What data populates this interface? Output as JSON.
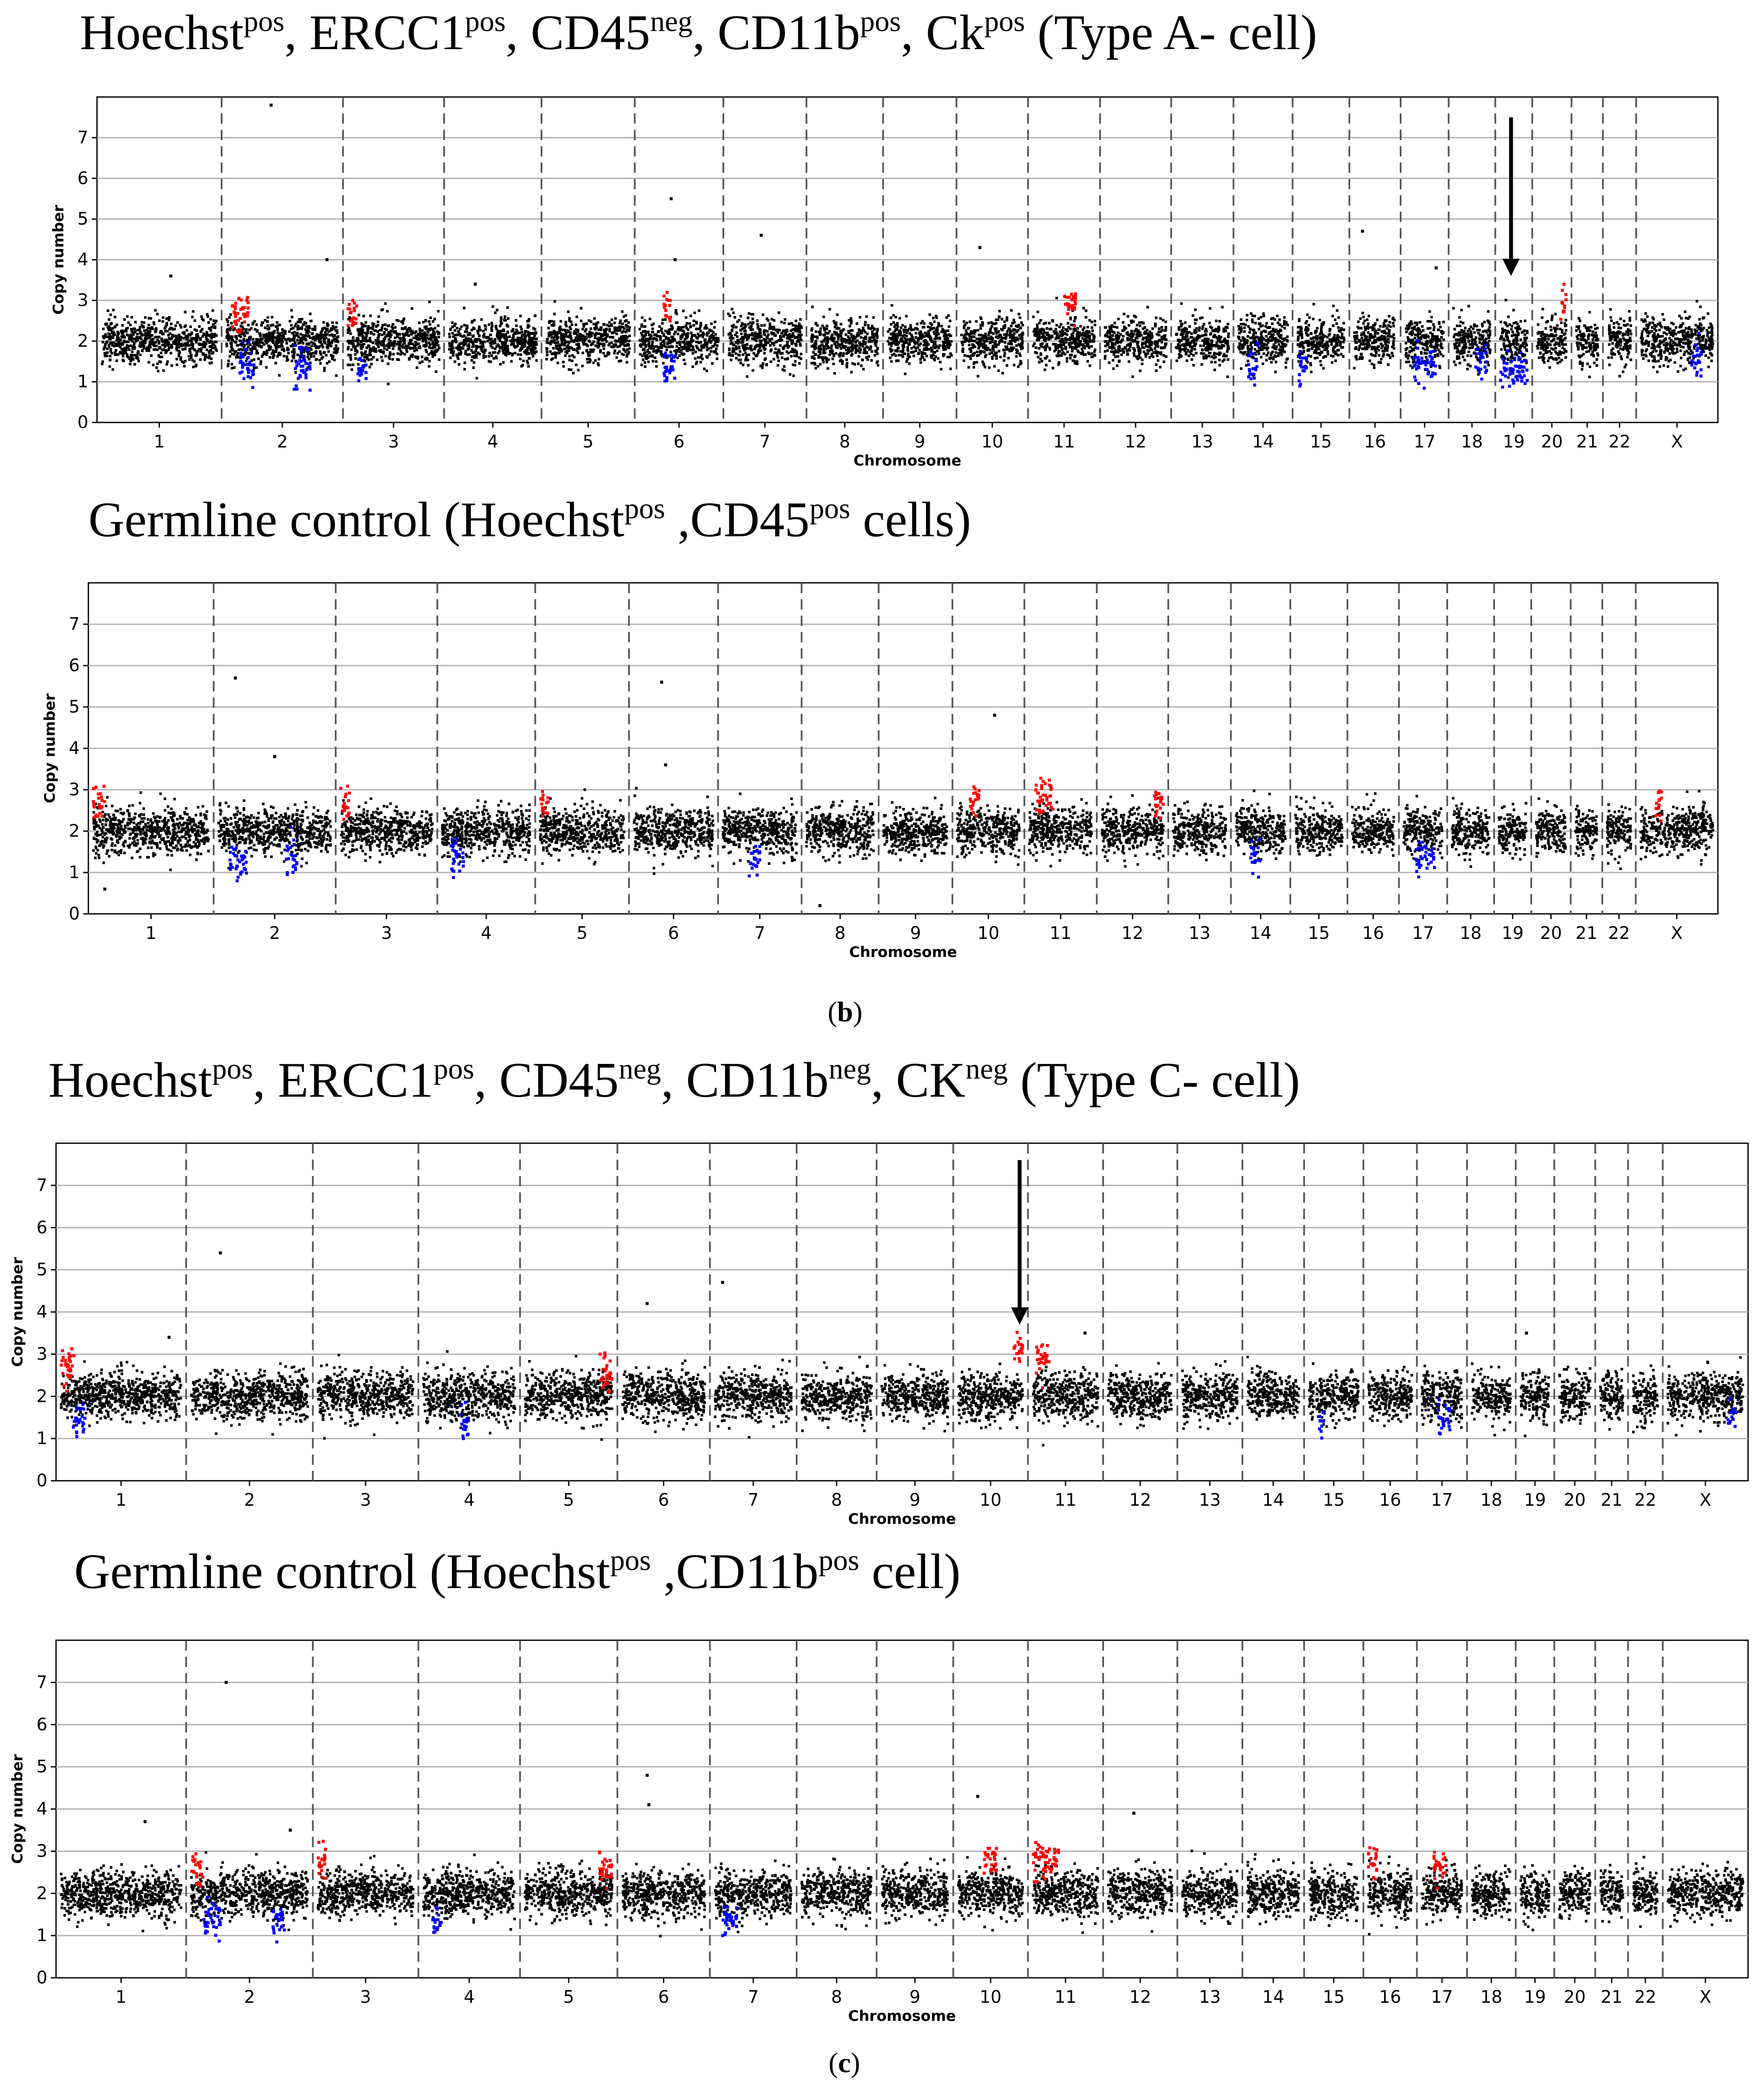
{
  "titles": {
    "t1": {
      "a": "Hoechst",
      "a_sup": "pos",
      "b": ", ERCC1",
      "b_sup": "pos",
      "c": ", CD45",
      "c_sup": "neg",
      "d": ", CD11b",
      "d_sup": "pos",
      "e": ", Ck",
      "e_sup": "pos",
      "f": " (Type A- cell)"
    },
    "t2": {
      "a": "Germline control (Hoechst",
      "a_sup": "pos",
      "b": " ,CD45",
      "b_sup": "pos",
      "c": " cells)"
    },
    "t3": {
      "a": "Hoechst",
      "a_sup": "pos",
      "b": ", ERCC1",
      "b_sup": "pos",
      "c": ", CD45",
      "c_sup": "neg",
      "d": ", CD11b",
      "d_sup": "neg",
      "e": ", CK",
      "e_sup": "neg",
      "f": " (Type C- cell)"
    },
    "t4": {
      "a": "Germline control (Hoechst",
      "a_sup": "pos",
      "b": " ,CD11b",
      "b_sup": "pos",
      "c": " cell)"
    }
  },
  "labels": {
    "b": {
      "open": "(",
      "letter": "b",
      "close": ")"
    },
    "c": {
      "open": "(",
      "letter": "c",
      "close": ")"
    }
  },
  "colors": {
    "normal": "#000000",
    "gain": "#ff0000",
    "loss": "#0000ff",
    "grid": "#b0b0b0",
    "separator": "#555555",
    "arrow": "#000000"
  },
  "chart_data": [
    {
      "id": "p1",
      "type": "scatter",
      "xlabel": "Chromosome",
      "ylabel": "Copy number",
      "ylim": [
        0,
        8
      ],
      "yticks": [
        0,
        1,
        2,
        3,
        4,
        5,
        6,
        7
      ],
      "grid": "horizontal",
      "chromosomes": [
        "1",
        "2",
        "3",
        "4",
        "5",
        "6",
        "7",
        "8",
        "9",
        "10",
        "11",
        "12",
        "13",
        "14",
        "15",
        "16",
        "17",
        "18",
        "19",
        "20",
        "21",
        "22",
        "X"
      ],
      "sizes": [
        249,
        242,
        198,
        190,
        181,
        171,
        159,
        145,
        138,
        134,
        135,
        133,
        114,
        107,
        102,
        90,
        83,
        80,
        59,
        64,
        47,
        51,
        156
      ],
      "baseline": 2.0,
      "gains": [
        {
          "chrom": "2",
          "from": 0.05,
          "to": 0.2,
          "value": 2.7
        },
        {
          "chrom": "3",
          "from": 0.0,
          "to": 0.1,
          "value": 2.7
        },
        {
          "chrom": "6",
          "from": 0.3,
          "to": 0.4,
          "value": 2.8
        },
        {
          "chrom": "11",
          "from": 0.5,
          "to": 0.7,
          "value": 2.9
        },
        {
          "chrom": "20",
          "from": 0.8,
          "to": 1.0,
          "value": 2.9
        }
      ],
      "losses": [
        {
          "chrom": "2",
          "from": 0.1,
          "to": 0.25,
          "value": 1.4
        },
        {
          "chrom": "2",
          "from": 0.6,
          "to": 0.75,
          "value": 1.3
        },
        {
          "chrom": "3",
          "from": 0.1,
          "to": 0.2,
          "value": 1.3
        },
        {
          "chrom": "6",
          "from": 0.3,
          "to": 0.45,
          "value": 1.4
        },
        {
          "chrom": "14",
          "from": 0.2,
          "to": 0.4,
          "value": 1.4
        },
        {
          "chrom": "15",
          "from": 0.0,
          "to": 0.2,
          "value": 1.4
        },
        {
          "chrom": "17",
          "from": 0.2,
          "to": 0.8,
          "value": 1.4
        },
        {
          "chrom": "18",
          "from": 0.6,
          "to": 0.9,
          "value": 1.5
        },
        {
          "chrom": "19",
          "from": 0.0,
          "to": 1.0,
          "value": 1.3
        },
        {
          "chrom": "X",
          "from": 0.7,
          "to": 0.85,
          "value": 1.5
        }
      ],
      "outliers": [
        {
          "chrom": "2",
          "pos": 0.4,
          "value": 7.8
        },
        {
          "chrom": "2",
          "pos": 0.9,
          "value": 4.0
        },
        {
          "chrom": "6",
          "pos": 0.4,
          "value": 5.5
        },
        {
          "chrom": "6",
          "pos": 0.45,
          "value": 4.0
        },
        {
          "chrom": "7",
          "pos": 0.45,
          "value": 4.6
        },
        {
          "chrom": "10",
          "pos": 0.3,
          "value": 4.3
        },
        {
          "chrom": "16",
          "pos": 0.2,
          "value": 4.7
        },
        {
          "chrom": "1",
          "pos": 0.6,
          "value": 3.6
        },
        {
          "chrom": "4",
          "pos": 0.3,
          "value": 3.4
        },
        {
          "chrom": "17",
          "pos": 0.8,
          "value": 3.8
        }
      ],
      "arrow": {
        "chrom": "19",
        "pos": 0.4,
        "from": 7.5,
        "to": 3.6
      }
    },
    {
      "id": "p2",
      "type": "scatter",
      "xlabel": "Chromosome",
      "ylabel": "Copy number",
      "ylim": [
        0,
        8
      ],
      "yticks": [
        0,
        1,
        2,
        3,
        4,
        5,
        6,
        7
      ],
      "grid": "horizontal",
      "chromosomes": [
        "1",
        "2",
        "3",
        "4",
        "5",
        "6",
        "7",
        "8",
        "9",
        "10",
        "11",
        "12",
        "13",
        "14",
        "15",
        "16",
        "17",
        "18",
        "19",
        "20",
        "21",
        "22",
        "X"
      ],
      "sizes": [
        249,
        242,
        198,
        190,
        181,
        171,
        159,
        145,
        138,
        134,
        135,
        133,
        114,
        107,
        102,
        90,
        83,
        80,
        59,
        64,
        47,
        51,
        156
      ],
      "baseline": 2.0,
      "gains": [
        {
          "chrom": "1",
          "from": 0.0,
          "to": 0.1,
          "value": 2.6
        },
        {
          "chrom": "3",
          "from": 0.0,
          "to": 0.1,
          "value": 2.6
        },
        {
          "chrom": "5",
          "from": 0.0,
          "to": 0.1,
          "value": 2.7
        },
        {
          "chrom": "10",
          "from": 0.2,
          "to": 0.35,
          "value": 2.8
        },
        {
          "chrom": "11",
          "from": 0.1,
          "to": 0.4,
          "value": 2.8
        },
        {
          "chrom": "12",
          "from": 0.85,
          "to": 1.0,
          "value": 2.7
        },
        {
          "chrom": "X",
          "from": 0.2,
          "to": 0.3,
          "value": 2.7
        }
      ],
      "losses": [
        {
          "chrom": "2",
          "from": 0.1,
          "to": 0.25,
          "value": 1.3
        },
        {
          "chrom": "2",
          "from": 0.6,
          "to": 0.7,
          "value": 1.3
        },
        {
          "chrom": "4",
          "from": 0.1,
          "to": 0.25,
          "value": 1.3
        },
        {
          "chrom": "7",
          "from": 0.35,
          "to": 0.5,
          "value": 1.3
        },
        {
          "chrom": "14",
          "from": 0.3,
          "to": 0.5,
          "value": 1.4
        },
        {
          "chrom": "17",
          "from": 0.3,
          "to": 0.8,
          "value": 1.4
        }
      ],
      "outliers": [
        {
          "chrom": "2",
          "pos": 0.15,
          "value": 5.7
        },
        {
          "chrom": "2",
          "pos": 0.5,
          "value": 3.8
        },
        {
          "chrom": "6",
          "pos": 0.35,
          "value": 5.6
        },
        {
          "chrom": "6",
          "pos": 0.4,
          "value": 3.6
        },
        {
          "chrom": "10",
          "pos": 0.6,
          "value": 4.8
        },
        {
          "chrom": "8",
          "pos": 0.2,
          "value": 0.2
        },
        {
          "chrom": "1",
          "pos": 0.1,
          "value": 0.6
        }
      ]
    },
    {
      "id": "p3",
      "type": "scatter",
      "xlabel": "Chromosome",
      "ylabel": "Copy number",
      "ylim": [
        0,
        8
      ],
      "yticks": [
        0,
        1,
        2,
        3,
        4,
        5,
        6,
        7
      ],
      "grid": "horizontal",
      "chromosomes": [
        "1",
        "2",
        "3",
        "4",
        "5",
        "6",
        "7",
        "8",
        "9",
        "10",
        "11",
        "12",
        "13",
        "14",
        "15",
        "16",
        "17",
        "18",
        "19",
        "20",
        "21",
        "22",
        "X"
      ],
      "sizes": [
        249,
        242,
        198,
        190,
        181,
        171,
        159,
        145,
        138,
        134,
        135,
        133,
        114,
        107,
        102,
        90,
        83,
        80,
        59,
        64,
        47,
        51,
        156
      ],
      "baseline": 2.0,
      "gains": [
        {
          "chrom": "1",
          "from": 0.0,
          "to": 0.12,
          "value": 2.7
        },
        {
          "chrom": "5",
          "from": 0.85,
          "to": 1.0,
          "value": 2.6
        },
        {
          "chrom": "10",
          "from": 0.85,
          "to": 1.0,
          "value": 3.1
        },
        {
          "chrom": "11",
          "from": 0.05,
          "to": 0.25,
          "value": 2.8
        }
      ],
      "losses": [
        {
          "chrom": "1",
          "from": 0.1,
          "to": 0.2,
          "value": 1.4
        },
        {
          "chrom": "4",
          "from": 0.4,
          "to": 0.5,
          "value": 1.3
        },
        {
          "chrom": "17",
          "from": 0.4,
          "to": 0.7,
          "value": 1.4
        },
        {
          "chrom": "15",
          "from": 0.2,
          "to": 0.3,
          "value": 1.4
        },
        {
          "chrom": "X",
          "from": 0.8,
          "to": 0.9,
          "value": 1.5
        }
      ],
      "outliers": [
        {
          "chrom": "2",
          "pos": 0.25,
          "value": 5.4
        },
        {
          "chrom": "6",
          "pos": 0.3,
          "value": 4.2
        },
        {
          "chrom": "7",
          "pos": 0.1,
          "value": 4.7
        },
        {
          "chrom": "19",
          "pos": 0.2,
          "value": 3.5
        },
        {
          "chrom": "11",
          "pos": 0.8,
          "value": 3.5
        },
        {
          "chrom": "1",
          "pos": 0.9,
          "value": 3.4
        }
      ],
      "arrow": {
        "chrom": "10",
        "pos": 0.95,
        "from": 7.6,
        "to": 3.7
      }
    },
    {
      "id": "p4",
      "type": "scatter",
      "xlabel": "Chromosome",
      "ylabel": "Copy number",
      "ylim": [
        0,
        8
      ],
      "yticks": [
        0,
        1,
        2,
        3,
        4,
        5,
        6,
        7
      ],
      "grid": "horizontal",
      "chromosomes": [
        "1",
        "2",
        "3",
        "4",
        "5",
        "6",
        "7",
        "8",
        "9",
        "10",
        "11",
        "12",
        "13",
        "14",
        "15",
        "16",
        "17",
        "18",
        "19",
        "20",
        "21",
        "22",
        "X"
      ],
      "sizes": [
        249,
        242,
        198,
        190,
        181,
        171,
        159,
        145,
        138,
        134,
        135,
        133,
        114,
        107,
        102,
        90,
        83,
        80,
        59,
        64,
        47,
        51,
        156
      ],
      "baseline": 2.0,
      "gains": [
        {
          "chrom": "2",
          "from": 0.0,
          "to": 0.1,
          "value": 2.6
        },
        {
          "chrom": "3",
          "from": 0.0,
          "to": 0.1,
          "value": 2.7
        },
        {
          "chrom": "5",
          "from": 0.85,
          "to": 1.0,
          "value": 2.6
        },
        {
          "chrom": "10",
          "from": 0.4,
          "to": 0.6,
          "value": 2.8
        },
        {
          "chrom": "11",
          "from": 0.0,
          "to": 0.4,
          "value": 2.8
        },
        {
          "chrom": "16",
          "from": 0.0,
          "to": 0.2,
          "value": 2.8
        },
        {
          "chrom": "17",
          "from": 0.3,
          "to": 0.6,
          "value": 2.7
        }
      ],
      "losses": [
        {
          "chrom": "2",
          "from": 0.1,
          "to": 0.25,
          "value": 1.4
        },
        {
          "chrom": "2",
          "from": 0.7,
          "to": 0.8,
          "value": 1.4
        },
        {
          "chrom": "4",
          "from": 0.1,
          "to": 0.2,
          "value": 1.3
        },
        {
          "chrom": "7",
          "from": 0.1,
          "to": 0.3,
          "value": 1.4
        }
      ],
      "outliers": [
        {
          "chrom": "2",
          "pos": 0.3,
          "value": 7.0
        },
        {
          "chrom": "6",
          "pos": 0.3,
          "value": 4.8
        },
        {
          "chrom": "6",
          "pos": 0.32,
          "value": 4.1
        },
        {
          "chrom": "10",
          "pos": 0.3,
          "value": 4.3
        },
        {
          "chrom": "12",
          "pos": 0.4,
          "value": 3.9
        },
        {
          "chrom": "1",
          "pos": 0.7,
          "value": 3.7
        },
        {
          "chrom": "2",
          "pos": 0.85,
          "value": 3.5
        }
      ]
    }
  ]
}
